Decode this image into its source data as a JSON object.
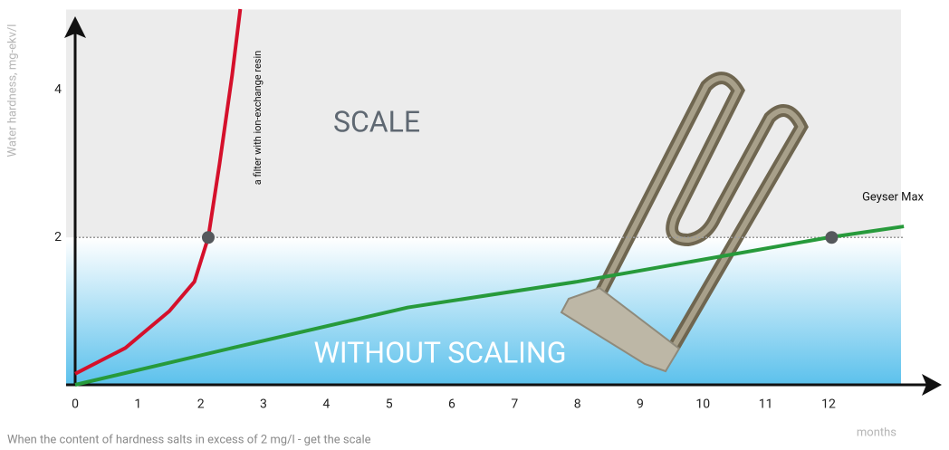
{
  "chart_data": {
    "type": "line",
    "y_label": "Water hardness, mg-ekv/l",
    "x_label": "months",
    "footnote": "When the content of hardness salts in excess of 2 mg/l - get the scale",
    "region_labels": [
      "SCALE",
      "WITHOUT SCALING"
    ],
    "xlim": [
      0,
      13.2
    ],
    "ylim": [
      0,
      5.1
    ],
    "xticks": [
      0,
      1,
      2,
      3,
      4,
      5,
      6,
      7,
      8,
      9,
      10,
      11,
      12
    ],
    "yticks": [
      2,
      4
    ],
    "threshold": 2,
    "series": [
      {
        "name": "a filter with ion-exchange resin",
        "color": "#d5102b",
        "x": [
          0,
          0.8,
          1.5,
          1.9,
          2.12,
          2.3,
          2.5,
          2.63
        ],
        "values": [
          0.15,
          0.5,
          1.0,
          1.4,
          2,
          3.0,
          4.2,
          5.1
        ]
      },
      {
        "name": "Geyser Max",
        "color": "#279a3b",
        "x": [
          0,
          2.5,
          5.3,
          8,
          12,
          13.2
        ],
        "values": [
          0,
          0.5,
          1.05,
          1.4,
          2,
          2.15
        ]
      }
    ],
    "highlight_points": [
      {
        "x": 2.12,
        "y": 2
      },
      {
        "x": 12.05,
        "y": 2
      }
    ]
  }
}
